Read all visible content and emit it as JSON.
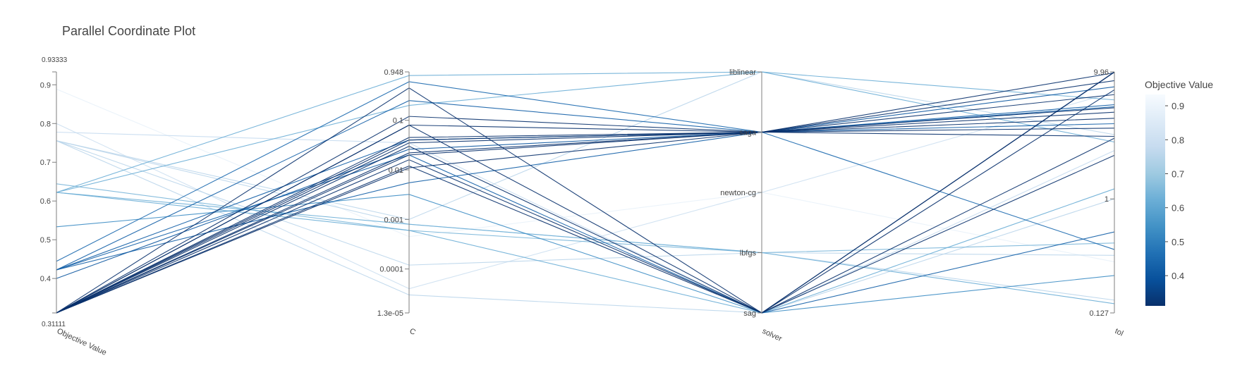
{
  "chart_data": {
    "type": "parallel_coordinates",
    "title": "Parallel Coordinate Plot",
    "colorscale": "Blues",
    "colorscale_stops": [
      "#08306b",
      "#08519c",
      "#2171b5",
      "#4292c6",
      "#6baed6",
      "#9ecae1",
      "#c6dbef",
      "#deebf7",
      "#f7fbff"
    ],
    "colorbar": {
      "title": "Objective Value",
      "ticks": [
        "0.4",
        "0.5",
        "0.6",
        "0.7",
        "0.8",
        "0.9"
      ],
      "tick_values": [
        0.4,
        0.5,
        0.6,
        0.7,
        0.8,
        0.9
      ],
      "range": [
        0.31111,
        0.93333
      ]
    },
    "dimensions": [
      {
        "label": "Objective Value",
        "scale": "linear",
        "range": [
          0.31111,
          0.93333
        ],
        "ticks": [
          "0.4",
          "0.5",
          "0.6",
          "0.7",
          "0.8",
          "0.9"
        ],
        "tick_values": [
          0.4,
          0.5,
          0.6,
          0.7,
          0.8,
          0.9
        ],
        "min_label": "0.31111",
        "max_label": "0.93333"
      },
      {
        "label": "C",
        "scale": "log",
        "range": [
          1.3e-05,
          0.948
        ],
        "ticks": [
          "0.1",
          "0.01",
          "0.001",
          "0.0001"
        ],
        "tick_values": [
          0.1,
          0.01,
          0.001,
          0.0001
        ],
        "min_label": "1.3e-05",
        "max_label": "0.948"
      },
      {
        "label": "solver",
        "scale": "categorical",
        "categories": [
          "sag",
          "lbfgs",
          "newton-cg",
          "saga",
          "liblinear"
        ]
      },
      {
        "label": "tol",
        "scale": "log",
        "range": [
          0.127,
          9.96
        ],
        "ticks": [
          "1"
        ],
        "tick_values": [
          1
        ],
        "min_label": "0.127",
        "max_label": "9.96"
      }
    ],
    "trials": [
      {
        "objective": 0.31111,
        "C": 0.12,
        "solver": "saga",
        "tol": 9.8
      },
      {
        "objective": 0.31111,
        "C": 0.08,
        "solver": "saga",
        "tol": 8.5
      },
      {
        "objective": 0.31111,
        "C": 0.045,
        "solver": "saga",
        "tol": 6.6
      },
      {
        "objective": 0.31111,
        "C": 0.035,
        "solver": "saga",
        "tol": 5.2
      },
      {
        "objective": 0.31111,
        "C": 0.022,
        "solver": "saga",
        "tol": 4.3
      },
      {
        "objective": 0.31111,
        "C": 0.02,
        "solver": "saga",
        "tol": 3.6
      },
      {
        "objective": 0.31111,
        "C": 0.011,
        "solver": "saga",
        "tol": 3.1
      },
      {
        "objective": 0.31111,
        "C": 0.08,
        "solver": "sag",
        "tol": 9.96
      },
      {
        "objective": 0.31111,
        "C": 0.012,
        "solver": "sag",
        "tol": 9.9
      },
      {
        "objective": 0.31111,
        "C": 0.45,
        "solver": "sag",
        "tol": 7.2
      },
      {
        "objective": 0.31111,
        "C": 0.04,
        "solver": "saga",
        "tol": 4.8
      },
      {
        "objective": 0.31111,
        "C": 0.03,
        "solver": "sag",
        "tol": 3.0
      },
      {
        "objective": 0.31111,
        "C": 0.016,
        "solver": "sag",
        "tol": 2.2
      },
      {
        "objective": 0.4,
        "C": 0.026,
        "solver": "saga",
        "tol": 7.6
      },
      {
        "objective": 0.42222,
        "C": 0.25,
        "solver": "saga",
        "tol": 5.5
      },
      {
        "objective": 0.42222,
        "C": 0.0055,
        "solver": "saga",
        "tol": 5.3
      },
      {
        "objective": 0.42222,
        "C": 0.02,
        "solver": "sag",
        "tol": 0.55
      },
      {
        "objective": 0.42222,
        "C": 0.04,
        "solver": "saga",
        "tol": 3.9
      },
      {
        "objective": 0.44444,
        "C": 0.6,
        "solver": "saga",
        "tol": 0.4
      },
      {
        "objective": 0.53333,
        "C": 0.0032,
        "solver": "sag",
        "tol": 0.25
      },
      {
        "objective": 0.62222,
        "C": 0.2,
        "solver": "liblinear",
        "tol": 2.8
      },
      {
        "objective": 0.62222,
        "C": 0.8,
        "solver": "liblinear",
        "tol": 6.0
      },
      {
        "objective": 0.64444,
        "C": 0.0006,
        "solver": "lbfgs",
        "tol": 0.45
      },
      {
        "objective": 0.62222,
        "C": 0.0006,
        "solver": "sag",
        "tol": 1.2
      },
      {
        "objective": 0.75556,
        "C": 0.001,
        "solver": "liblinear",
        "tol": 3.2
      },
      {
        "objective": 0.75556,
        "C": 0.0008,
        "solver": "lbfgs",
        "tol": 0.16
      },
      {
        "objective": 0.77778,
        "C": 0.035,
        "solver": "sag",
        "tol": 2.4
      },
      {
        "objective": 0.8,
        "C": 4e-05,
        "solver": "newton-cg",
        "tol": 6.9
      },
      {
        "objective": 0.75556,
        "C": 0.00012,
        "solver": "lbfgs",
        "tol": 0.36
      },
      {
        "objective": 0.88889,
        "C": 0.00045,
        "solver": "newton-cg",
        "tol": 0.32
      },
      {
        "objective": 0.75556,
        "C": 3e-05,
        "solver": "sag",
        "tol": 1.0
      },
      {
        "objective": 0.62222,
        "C": 0.0008,
        "solver": "lbfgs",
        "tol": 0.15
      }
    ]
  }
}
